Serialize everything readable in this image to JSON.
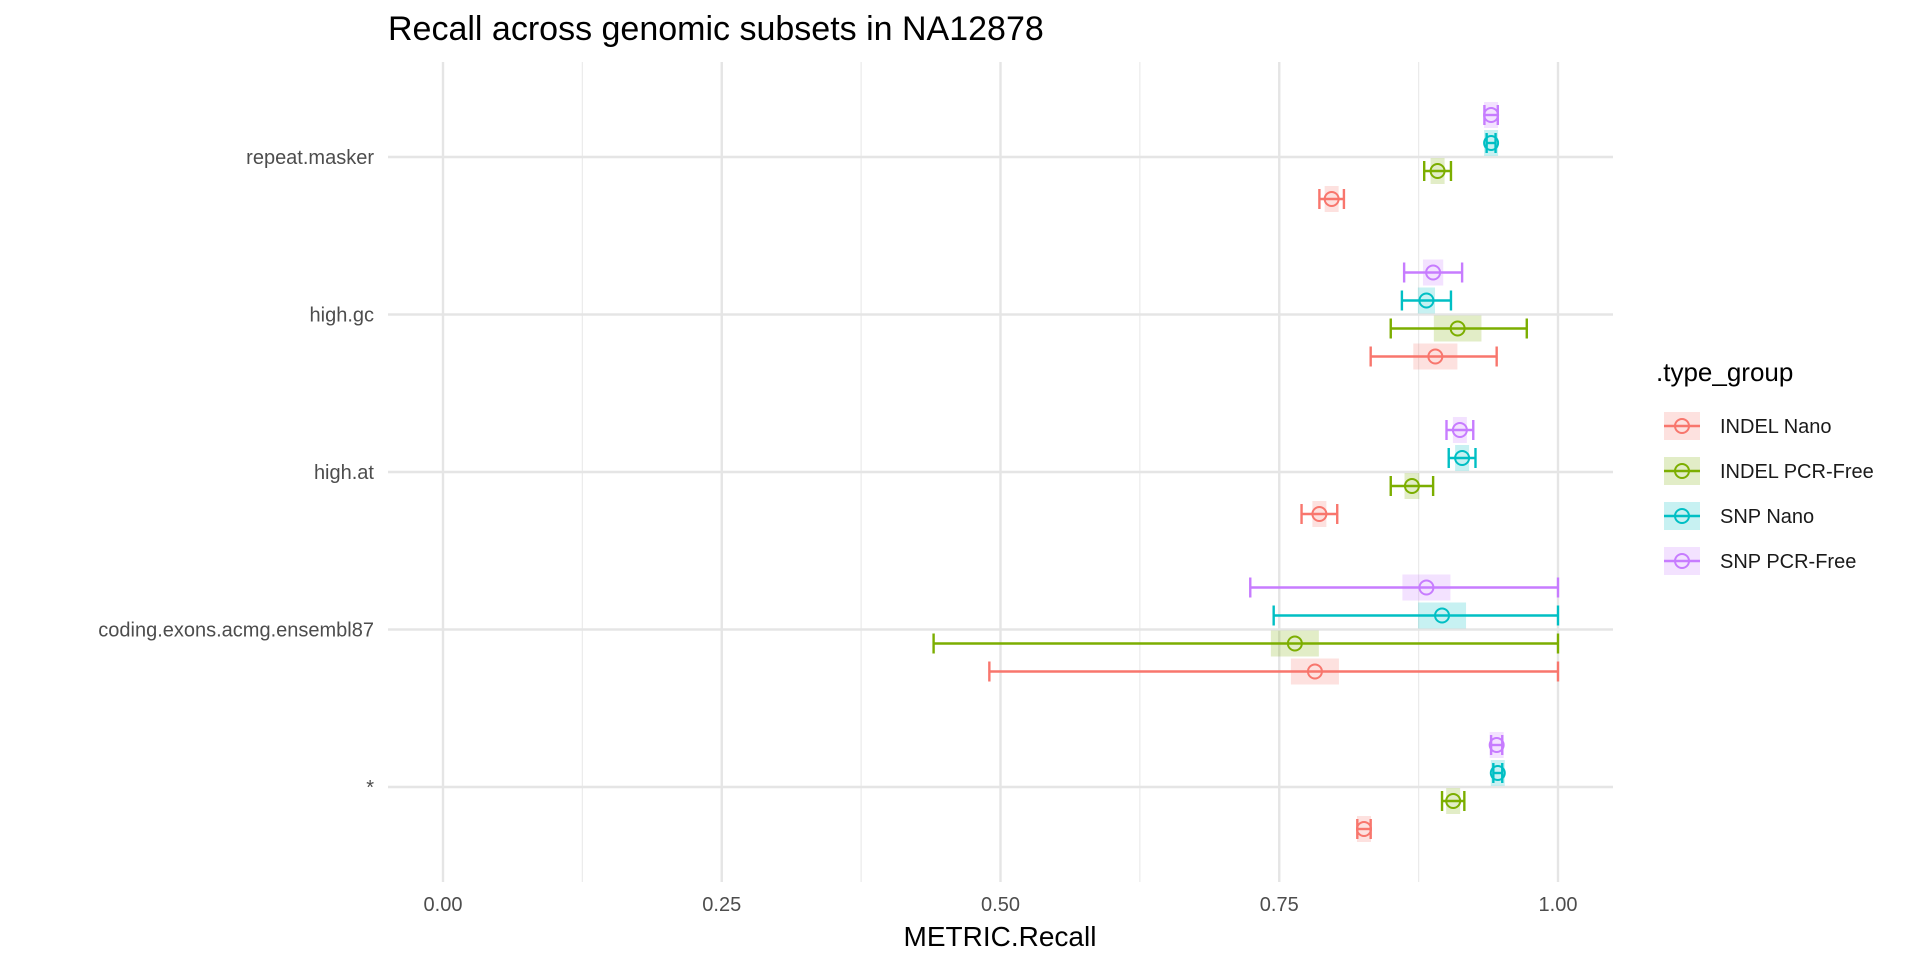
{
  "chart_data": {
    "type": "errorbar",
    "title": "Recall across genomic subsets in NA12878",
    "xlabel": "METRIC.Recall",
    "ylabel": "",
    "xlim": [
      -0.05,
      1.12
    ],
    "x_ticks": [
      "0.00",
      "0.25",
      "0.50",
      "0.75",
      "1.00"
    ],
    "x_tick_values": [
      0,
      0.25,
      0.5,
      0.75,
      1.0
    ],
    "x_minor_tick_values": [
      0.125,
      0.375,
      0.625,
      0.875
    ],
    "categories": [
      "repeat.masker",
      "high.gc",
      "high.at",
      "coding.exons.acmg.ensembl87",
      "*"
    ],
    "grid": true,
    "legend": {
      "title": ".type_group",
      "position": "right",
      "entries": [
        "INDEL Nano",
        "INDEL PCR-Free",
        "SNP Nano",
        "SNP PCR-Free"
      ]
    },
    "series": [
      {
        "name": "INDEL Nano",
        "color": "#F8766D",
        "points": [
          {
            "category": "repeat.masker",
            "x": 0.797,
            "lo": 0.786,
            "hi": 0.808
          },
          {
            "category": "high.gc",
            "x": 0.89,
            "lo": 0.832,
            "hi": 0.945
          },
          {
            "category": "high.at",
            "x": 0.786,
            "lo": 0.77,
            "hi": 0.802
          },
          {
            "category": "coding.exons.acmg.ensembl87",
            "x": 0.782,
            "lo": 0.49,
            "hi": 1.0
          },
          {
            "category": "*",
            "x": 0.826,
            "lo": 0.82,
            "hi": 0.832
          }
        ]
      },
      {
        "name": "INDEL PCR-Free",
        "color": "#7CAE00",
        "points": [
          {
            "category": "repeat.masker",
            "x": 0.892,
            "lo": 0.88,
            "hi": 0.904
          },
          {
            "category": "high.gc",
            "x": 0.91,
            "lo": 0.85,
            "hi": 0.972
          },
          {
            "category": "high.at",
            "x": 0.869,
            "lo": 0.85,
            "hi": 0.888
          },
          {
            "category": "coding.exons.acmg.ensembl87",
            "x": 0.764,
            "lo": 0.44,
            "hi": 1.0
          },
          {
            "category": "*",
            "x": 0.906,
            "lo": 0.896,
            "hi": 0.916
          }
        ]
      },
      {
        "name": "SNP Nano",
        "color": "#00BFC4",
        "points": [
          {
            "category": "repeat.masker",
            "x": 0.94,
            "lo": 0.936,
            "hi": 0.944
          },
          {
            "category": "high.gc",
            "x": 0.882,
            "lo": 0.86,
            "hi": 0.904
          },
          {
            "category": "high.at",
            "x": 0.914,
            "lo": 0.902,
            "hi": 0.926
          },
          {
            "category": "coding.exons.acmg.ensembl87",
            "x": 0.896,
            "lo": 0.745,
            "hi": 1.0
          },
          {
            "category": "*",
            "x": 0.946,
            "lo": 0.942,
            "hi": 0.95
          }
        ]
      },
      {
        "name": "SNP PCR-Free",
        "color": "#C77CFF",
        "points": [
          {
            "category": "repeat.masker",
            "x": 0.94,
            "lo": 0.934,
            "hi": 0.946
          },
          {
            "category": "high.gc",
            "x": 0.888,
            "lo": 0.862,
            "hi": 0.914
          },
          {
            "category": "high.at",
            "x": 0.912,
            "lo": 0.9,
            "hi": 0.924
          },
          {
            "category": "coding.exons.acmg.ensembl87",
            "x": 0.882,
            "lo": 0.724,
            "hi": 1.0
          },
          {
            "category": "*",
            "x": 0.945,
            "lo": 0.94,
            "hi": 0.95
          }
        ]
      }
    ]
  }
}
